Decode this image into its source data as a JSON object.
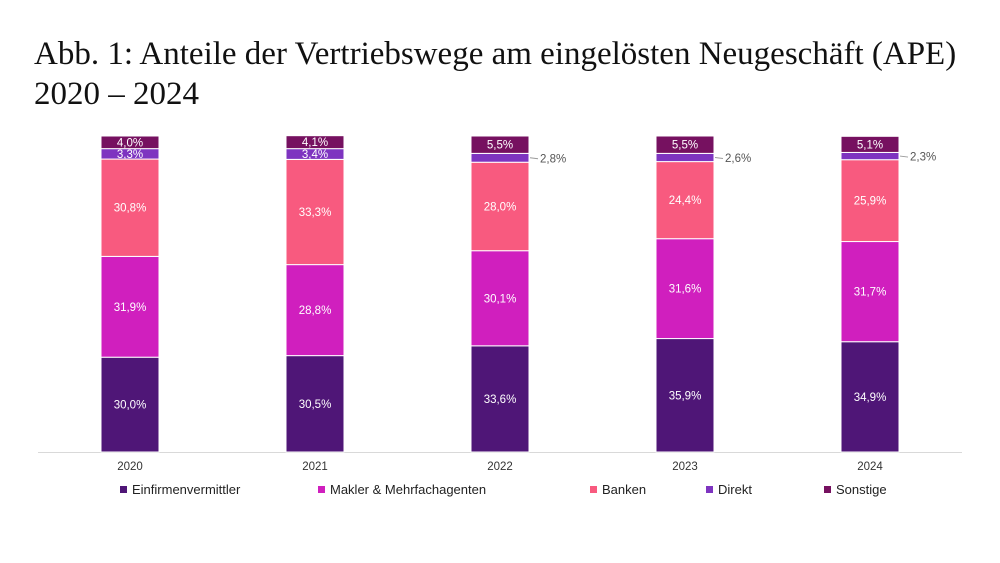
{
  "title": "Abb. 1: Anteile der Vertriebswege am eingelösten Neugeschäft (APE) 2020 – 2024",
  "chart_data": {
    "type": "bar",
    "stacked": true,
    "categories": [
      "2020",
      "2021",
      "2022",
      "2023",
      "2024"
    ],
    "ylim": [
      0,
      100
    ],
    "grid": false,
    "legend_position": "bottom",
    "series": [
      {
        "name": "Einfirmenvermittler",
        "color": "#4f1677",
        "values": [
          30.0,
          30.5,
          33.6,
          35.9,
          34.9
        ],
        "labels": [
          "30,0%",
          "30,5%",
          "33,6%",
          "35,9%",
          "34,9%"
        ]
      },
      {
        "name": "Makler & Mehrfachagenten",
        "color": "#d01fbe",
        "values": [
          31.9,
          28.8,
          30.1,
          31.6,
          31.7
        ],
        "labels": [
          "31,9%",
          "28,8%",
          "30,1%",
          "31,6%",
          "31,7%"
        ]
      },
      {
        "name": "Banken",
        "color": "#f85a7f",
        "values": [
          30.8,
          33.3,
          28.0,
          24.4,
          25.9
        ],
        "labels": [
          "30,8%",
          "33,3%",
          "28,0%",
          "24,4%",
          "25,9%"
        ]
      },
      {
        "name": "Direkt",
        "color": "#7e34c0",
        "values": [
          3.3,
          3.4,
          2.8,
          2.6,
          2.3
        ],
        "labels": [
          "3,3%",
          "3,4%",
          "2,8%",
          "2,6%",
          "2,3%"
        ]
      },
      {
        "name": "Sonstige",
        "color": "#761160",
        "values": [
          4.0,
          4.1,
          5.5,
          5.5,
          5.1
        ],
        "labels": [
          "4,0%",
          "4,1%",
          "5,5%",
          "5,5%",
          "5,1%"
        ]
      }
    ]
  }
}
